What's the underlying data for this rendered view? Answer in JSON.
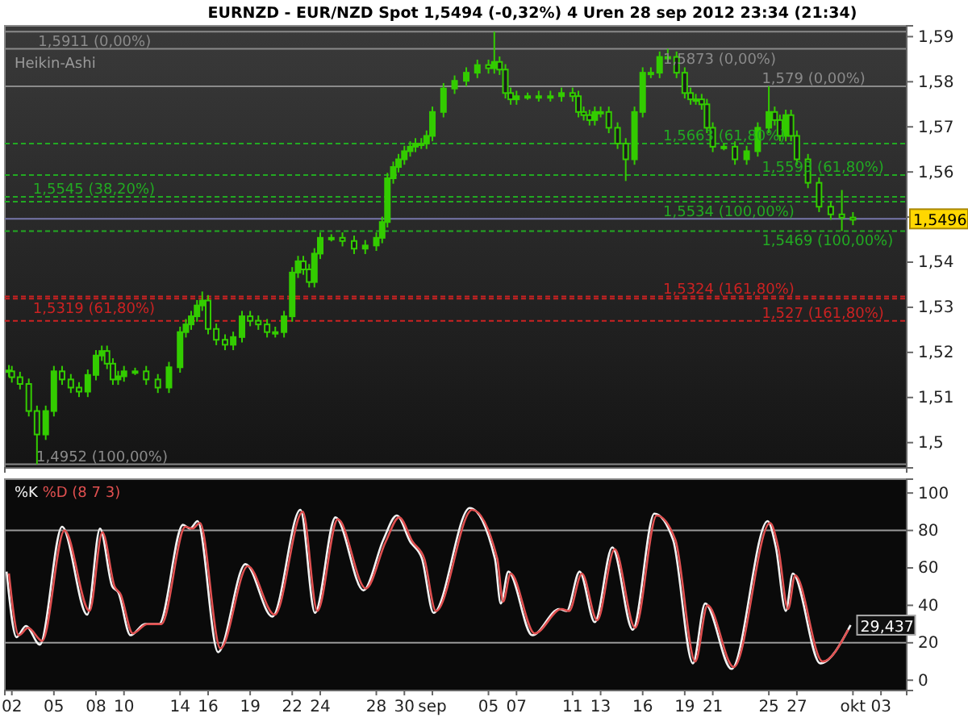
{
  "chart_data": [
    {
      "type": "candlestick",
      "title": "EURNZD - EUR/NZD Spot   1,5494 (-0,32%)   4 Uren  28 sep 2012 23:34 (21:34)",
      "color": "#33cc00",
      "annotations": [
        "Heikin-Ashi",
        {
          "text": "1,5911 (0,00%)",
          "x": "2012-08-03T21:00",
          "y": 1.5911
        },
        {
          "text": "1,5545 (38,20%)",
          "x": "2012-08-03T12:00",
          "y": 1.5545
        },
        {
          "text": "1,5319 (61,80%)",
          "x": "2012-08-03T12:00",
          "y": 1.5319
        },
        {
          "text": "1,4952 (100,00%)",
          "x": "2012-08-03T18:00",
          "y": 1.4952
        },
        {
          "text": "1,5873 (0,00%)",
          "x": "2012-09-17T11:00",
          "y": 1.5873
        },
        {
          "text": "1,579 (0,00%)",
          "x": "2012-09-24T12:00",
          "y": 1.579
        },
        {
          "text": "1,5663 (61,80%)",
          "x": "2012-09-17T11:00",
          "y": 1.5663
        },
        {
          "text": "1,5593 (61,80%)",
          "x": "2012-09-24T12:00",
          "y": 1.5593
        },
        {
          "text": "1,5534 (100,00%)",
          "x": "2012-09-17T11:00",
          "y": 1.5534
        },
        {
          "text": "1,5469 (100,00%)",
          "x": "2012-09-24T12:00",
          "y": 1.5469
        },
        {
          "text": "1,5324 (161,80%)",
          "x": "2012-09-17T11:00",
          "y": 1.5324
        },
        {
          "text": "1,527 (161,80%)",
          "x": "2012-09-24T12:00",
          "y": 1.527
        }
      ],
      "ref_lines": [
        {
          "axis": "y",
          "value": 1.5911,
          "color": "#8a8a8a",
          "line_style": "solid"
        },
        {
          "axis": "y",
          "value": 1.5545,
          "color": "#22aa22",
          "line_style": "dashed"
        },
        {
          "axis": "y",
          "value": 1.5319,
          "color": "#cc2222",
          "line_style": "dashed"
        },
        {
          "axis": "y",
          "value": 1.4952,
          "color": "#8a8a8a",
          "line_style": "solid"
        },
        {
          "axis": "y",
          "value": 1.5873,
          "color": "#8a8a8a",
          "line_style": "solid"
        },
        {
          "axis": "y",
          "value": 1.579,
          "color": "#8a8a8a",
          "line_style": "solid"
        },
        {
          "axis": "y",
          "value": 1.5663,
          "color": "#22aa22",
          "line_style": "dashed"
        },
        {
          "axis": "y",
          "value": 1.5593,
          "color": "#22aa22",
          "line_style": "dashed"
        },
        {
          "axis": "y",
          "value": 1.5534,
          "color": "#22aa22",
          "line_style": "dashed"
        },
        {
          "axis": "y",
          "value": 1.5469,
          "color": "#22aa22",
          "line_style": "dashed"
        },
        {
          "axis": "y",
          "value": 1.5324,
          "color": "#cc2222",
          "line_style": "dashed"
        },
        {
          "axis": "y",
          "value": 1.527,
          "color": "#cc2222",
          "line_style": "dashed"
        },
        {
          "axis": "y",
          "value": 1.5496,
          "color": "#7777aa",
          "line_style": "solid",
          "label": "1,5496"
        }
      ],
      "xlim": [
        "2012-08-01T12:00",
        "2012-10-04T20:00"
      ],
      "ylim": [
        1.4944,
        1.5924
      ],
      "yticks": [
        {
          "value": 1.5,
          "label": "1,5"
        },
        {
          "value": 1.51,
          "label": "1,51"
        },
        {
          "value": 1.52,
          "label": "1,52"
        },
        {
          "value": 1.53,
          "label": "1,53"
        },
        {
          "value": 1.54,
          "label": "1,54"
        },
        {
          "value": 1.55,
          "label": null
        },
        {
          "value": 1.56,
          "label": "1,56"
        },
        {
          "value": 1.57,
          "label": "1,57"
        },
        {
          "value": 1.58,
          "label": "1,58"
        },
        {
          "value": 1.59,
          "label": "1,59"
        }
      ],
      "tick_labels": "y",
      "x": [
        "2012-08-01T19:00",
        "2012-08-02T00:00",
        "2012-08-02T14:00",
        "2012-08-03T05:00",
        "2012-08-03T19:00",
        "2012-08-04T10:00",
        "2012-08-05T00:00",
        "2012-08-05T14:00",
        "2012-08-06T05:00",
        "2012-08-06T19:00",
        "2012-08-07T10:00",
        "2012-08-08T00:00",
        "2012-08-08T10:00",
        "2012-08-08T19:00",
        "2012-08-09T05:00",
        "2012-08-09T14:00",
        "2012-08-10T00:00",
        "2012-08-10T19:00",
        "2012-08-11T14:00",
        "2012-08-12T10:00",
        "2012-08-13T05:00",
        "2012-08-14T00:00",
        "2012-08-14T10:00",
        "2012-08-14T19:00",
        "2012-08-15T05:00",
        "2012-08-15T14:00",
        "2012-08-16T00:00",
        "2012-08-16T14:00",
        "2012-08-17T05:00",
        "2012-08-17T19:00",
        "2012-08-18T10:00",
        "2012-08-19T00:00",
        "2012-08-19T14:00",
        "2012-08-20T05:00",
        "2012-08-20T19:00",
        "2012-08-21T10:00",
        "2012-08-22T00:00",
        "2012-08-22T10:00",
        "2012-08-22T19:00",
        "2012-08-23T05:00",
        "2012-08-23T14:00",
        "2012-08-24T00:00",
        "2012-08-24T19:00",
        "2012-08-25T14:00",
        "2012-08-26T10:00",
        "2012-08-27T05:00",
        "2012-08-28T00:00",
        "2012-08-28T10:00",
        "2012-08-28T19:00",
        "2012-08-29T05:00",
        "2012-08-29T14:00",
        "2012-08-30T00:00",
        "2012-08-30T10:00",
        "2012-08-30T19:00",
        "2012-08-31T05:00",
        "2012-08-31T14:00",
        "2012-09-01T00:00",
        "2012-09-01T19:00",
        "2012-09-02T14:00",
        "2012-09-03T10:00",
        "2012-09-04T05:00",
        "2012-09-05T00:00",
        "2012-09-05T10:00",
        "2012-09-05T19:00",
        "2012-09-06T05:00",
        "2012-09-06T14:00",
        "2012-09-07T00:00",
        "2012-09-07T19:00",
        "2012-09-08T14:00",
        "2012-09-09T10:00",
        "2012-09-10T05:00",
        "2012-09-11T00:00",
        "2012-09-11T10:00",
        "2012-09-11T19:00",
        "2012-09-12T05:00",
        "2012-09-12T14:00",
        "2012-09-13T00:00",
        "2012-09-13T14:00",
        "2012-09-14T05:00",
        "2012-09-14T19:00",
        "2012-09-15T10:00",
        "2012-09-16T00:00",
        "2012-09-16T14:00",
        "2012-09-17T05:00",
        "2012-09-17T19:00",
        "2012-09-18T10:00",
        "2012-09-19T00:00",
        "2012-09-19T10:00",
        "2012-09-19T19:00",
        "2012-09-20T05:00",
        "2012-09-20T14:00",
        "2012-09-21T00:00",
        "2012-09-21T19:00",
        "2012-09-22T14:00",
        "2012-09-23T10:00",
        "2012-09-24T05:00",
        "2012-09-25T00:00",
        "2012-09-25T10:00",
        "2012-09-25T19:00",
        "2012-09-26T05:00",
        "2012-09-26T14:00",
        "2012-09-27T00:00",
        "2012-09-27T19:00",
        "2012-09-28T14:00",
        "2012-09-29T10:00",
        "2012-09-30T05:00",
        "2012-10-01T00:00"
      ],
      "ohlc": [
        [
          1.516,
          1.5172,
          1.5146,
          1.5158
        ],
        [
          1.5158,
          1.517,
          1.5133,
          1.5145
        ],
        [
          1.5145,
          1.5157,
          1.5118,
          1.513
        ],
        [
          1.513,
          1.5142,
          1.5058,
          1.507
        ],
        [
          1.507,
          1.5082,
          1.4952,
          1.5018
        ],
        [
          1.5018,
          1.5082,
          1.5006,
          1.507
        ],
        [
          1.507,
          1.517,
          1.5058,
          1.5158
        ],
        [
          1.5158,
          1.517,
          1.5128,
          1.514
        ],
        [
          1.514,
          1.5152,
          1.511,
          1.5122
        ],
        [
          1.5122,
          1.5134,
          1.5101,
          1.5113
        ],
        [
          1.5113,
          1.5162,
          1.5101,
          1.515
        ],
        [
          1.515,
          1.5205,
          1.5138,
          1.5193
        ],
        [
          1.5193,
          1.5215,
          1.5181,
          1.5203
        ],
        [
          1.5203,
          1.5215,
          1.5163,
          1.5175
        ],
        [
          1.5175,
          1.5187,
          1.5128,
          1.514
        ],
        [
          1.514,
          1.5159,
          1.5128,
          1.5147
        ],
        [
          1.5147,
          1.517,
          1.5135,
          1.5158
        ],
        [
          1.5158,
          1.5166,
          1.515,
          1.5158
        ],
        [
          1.5158,
          1.517,
          1.5128,
          1.514
        ],
        [
          1.514,
          1.5152,
          1.511,
          1.5122
        ],
        [
          1.5122,
          1.5179,
          1.511,
          1.5167
        ],
        [
          1.5167,
          1.5257,
          1.5155,
          1.5245
        ],
        [
          1.5245,
          1.5274,
          1.5233,
          1.5262
        ],
        [
          1.5262,
          1.5292,
          1.525,
          1.528
        ],
        [
          1.528,
          1.5316,
          1.5268,
          1.5304
        ],
        [
          1.5304,
          1.5335,
          1.5292,
          1.5315
        ],
        [
          1.5315,
          1.5327,
          1.524,
          1.5252
        ],
        [
          1.5252,
          1.5264,
          1.5216,
          1.5228
        ],
        [
          1.5228,
          1.524,
          1.5205,
          1.5217
        ],
        [
          1.5217,
          1.5246,
          1.5205,
          1.5234
        ],
        [
          1.5234,
          1.5292,
          1.5222,
          1.528
        ],
        [
          1.528,
          1.5292,
          1.5258,
          1.527
        ],
        [
          1.527,
          1.5282,
          1.525,
          1.5262
        ],
        [
          1.5262,
          1.5274,
          1.5233,
          1.5245
        ],
        [
          1.5245,
          1.5257,
          1.5233,
          1.5245
        ],
        [
          1.5245,
          1.5292,
          1.5233,
          1.528
        ],
        [
          1.528,
          1.5389,
          1.5268,
          1.5377
        ],
        [
          1.5377,
          1.5414,
          1.5365,
          1.5402
        ],
        [
          1.5402,
          1.5414,
          1.5372,
          1.5384
        ],
        [
          1.5384,
          1.5396,
          1.5344,
          1.5356
        ],
        [
          1.5356,
          1.5431,
          1.5344,
          1.5419
        ],
        [
          1.5419,
          1.5466,
          1.5407,
          1.5454
        ],
        [
          1.5454,
          1.5462,
          1.5446,
          1.5454
        ],
        [
          1.5454,
          1.5466,
          1.5435,
          1.5447
        ],
        [
          1.5447,
          1.5459,
          1.5418,
          1.543
        ],
        [
          1.543,
          1.5449,
          1.5418,
          1.5437
        ],
        [
          1.5437,
          1.5466,
          1.5425,
          1.5454
        ],
        [
          1.5454,
          1.5501,
          1.5442,
          1.5489
        ],
        [
          1.5489,
          1.5598,
          1.5477,
          1.5586
        ],
        [
          1.5586,
          1.5623,
          1.5574,
          1.5611
        ],
        [
          1.5611,
          1.564,
          1.5599,
          1.5628
        ],
        [
          1.5628,
          1.5658,
          1.5616,
          1.5646
        ],
        [
          1.5646,
          1.5668,
          1.5634,
          1.5656
        ],
        [
          1.5656,
          1.5675,
          1.5644,
          1.5663
        ],
        [
          1.5663,
          1.5675,
          1.5651,
          1.5663
        ],
        [
          1.5663,
          1.5692,
          1.5651,
          1.568
        ],
        [
          1.568,
          1.5745,
          1.5668,
          1.5733
        ],
        [
          1.5733,
          1.5797,
          1.5721,
          1.5785
        ],
        [
          1.5785,
          1.5814,
          1.5773,
          1.5802
        ],
        [
          1.5802,
          1.5832,
          1.579,
          1.582
        ],
        [
          1.582,
          1.5849,
          1.5808,
          1.5837
        ],
        [
          1.5837,
          1.5849,
          1.5818,
          1.583
        ],
        [
          1.583,
          1.5911,
          1.5818,
          1.5844
        ],
        [
          1.5844,
          1.5856,
          1.5815,
          1.5827
        ],
        [
          1.5827,
          1.5839,
          1.5763,
          1.5775
        ],
        [
          1.5775,
          1.5787,
          1.5749,
          1.5761
        ],
        [
          1.5761,
          1.578,
          1.5749,
          1.5768
        ],
        [
          1.5768,
          1.5776,
          1.576,
          1.5768
        ],
        [
          1.5768,
          1.578,
          1.5756,
          1.5768
        ],
        [
          1.5768,
          1.578,
          1.5756,
          1.5768
        ],
        [
          1.5768,
          1.5787,
          1.5756,
          1.5775
        ],
        [
          1.5775,
          1.5787,
          1.5756,
          1.5768
        ],
        [
          1.5768,
          1.578,
          1.5721,
          1.5733
        ],
        [
          1.5733,
          1.5745,
          1.5714,
          1.5726
        ],
        [
          1.5726,
          1.5738,
          1.5703,
          1.5715
        ],
        [
          1.5715,
          1.5745,
          1.5703,
          1.5733
        ],
        [
          1.5733,
          1.5745,
          1.5721,
          1.5733
        ],
        [
          1.5733,
          1.5745,
          1.5686,
          1.5698
        ],
        [
          1.5698,
          1.571,
          1.5651,
          1.5663
        ],
        [
          1.5663,
          1.5675,
          1.558,
          1.5628
        ],
        [
          1.5628,
          1.5745,
          1.5616,
          1.5733
        ],
        [
          1.5733,
          1.5832,
          1.5721,
          1.582
        ],
        [
          1.582,
          1.5832,
          1.5808,
          1.582
        ],
        [
          1.582,
          1.5867,
          1.5808,
          1.5855
        ],
        [
          1.5855,
          1.5873,
          1.5843,
          1.5855
        ],
        [
          1.5855,
          1.5867,
          1.5808,
          1.582
        ],
        [
          1.582,
          1.5832,
          1.5763,
          1.5775
        ],
        [
          1.5775,
          1.5787,
          1.5749,
          1.5761
        ],
        [
          1.5761,
          1.5773,
          1.5749,
          1.5761
        ],
        [
          1.5761,
          1.5773,
          1.5738,
          1.575
        ],
        [
          1.575,
          1.5762,
          1.5686,
          1.5698
        ],
        [
          1.5698,
          1.571,
          1.5644,
          1.5656
        ],
        [
          1.5656,
          1.5664,
          1.5648,
          1.5656
        ],
        [
          1.5656,
          1.5668,
          1.5616,
          1.5628
        ],
        [
          1.5628,
          1.5658,
          1.5616,
          1.5646
        ],
        [
          1.5646,
          1.571,
          1.5634,
          1.5698
        ],
        [
          1.5698,
          1.579,
          1.5686,
          1.5733
        ],
        [
          1.5733,
          1.5745,
          1.5703,
          1.5715
        ],
        [
          1.5715,
          1.5727,
          1.5668,
          1.568
        ],
        [
          1.568,
          1.5738,
          1.5668,
          1.5726
        ],
        [
          1.5726,
          1.5738,
          1.5668,
          1.568
        ],
        [
          1.568,
          1.5692,
          1.5616,
          1.5628
        ],
        [
          1.5628,
          1.564,
          1.5564,
          1.5576
        ],
        [
          1.5576,
          1.5588,
          1.5511,
          1.5523
        ],
        [
          1.5523,
          1.5535,
          1.5494,
          1.5506
        ],
        [
          1.5506,
          1.556,
          1.5469,
          1.5499
        ],
        [
          1.5499,
          1.5511,
          1.5482,
          1.5494
        ]
      ]
    },
    {
      "type": "line",
      "legend": "top left",
      "line_style": "solid",
      "series": [
        {
          "name": "%K",
          "color": "#f2f2f2",
          "x": [
            "2012-08-01T15:00",
            "2012-08-02T08:00",
            "2012-08-03T00:00",
            "2012-08-04T00:00",
            "2012-08-05T14:00",
            "2012-08-07T09:00",
            "2012-08-08T07:00",
            "2012-08-09T04:00",
            "2012-08-09T14:00",
            "2012-08-10T11:00",
            "2012-08-11T12:00",
            "2012-08-12T12:00",
            "2012-08-14T05:00",
            "2012-08-14T17:00",
            "2012-08-15T06:00",
            "2012-08-16T17:00",
            "2012-08-18T16:00",
            "2012-08-20T14:00",
            "2012-08-22T14:00",
            "2012-08-23T15:00",
            "2012-08-25T02:00",
            "2012-08-27T02:00",
            "2012-08-28T12:00",
            "2012-08-29T11:00",
            "2012-08-30T10:00",
            "2012-08-31T06:00",
            "2012-09-01T02:00",
            "2012-09-03T16:00",
            "2012-09-05T11:00",
            "2012-09-05T21:00",
            "2012-09-06T10:00",
            "2012-09-08T03:00",
            "2012-09-10T01:00",
            "2012-09-10T14:00",
            "2012-09-11T12:00",
            "2012-09-12T14:00",
            "2012-09-13T20:00",
            "2012-09-15T07:00",
            "2012-09-16T20:00",
            "2012-09-18T04:00",
            "2012-09-19T14:00",
            "2012-09-20T11:00",
            "2012-09-22T08:00",
            "2012-09-24T22:00",
            "2012-09-25T12:00",
            "2012-09-26T05:00",
            "2012-09-26T17:00",
            "2012-09-28T16:00",
            "2012-09-30T20:00"
          ],
          "values": [
            58,
            23,
            29,
            19,
            82,
            35,
            81,
            50,
            47,
            24,
            30,
            30,
            83,
            81,
            85,
            15,
            62,
            34,
            91,
            36,
            87,
            48,
            75,
            88,
            74,
            65,
            36,
            92,
            65,
            41,
            58,
            24,
            38,
            37,
            58,
            31,
            71,
            27,
            89,
            75,
            9,
            41,
            6,
            85,
            71,
            37,
            57,
            9,
            29.437
          ]
        },
        {
          "name": "%D (8 7 3)",
          "color": "#e05050",
          "x": [
            "2012-08-01T19:00",
            "2012-08-02T12:00",
            "2012-08-03T04:00",
            "2012-08-04T04:00",
            "2012-08-05T18:00",
            "2012-08-07T13:00",
            "2012-08-08T11:00",
            "2012-08-09T08:00",
            "2012-08-09T18:00",
            "2012-08-10T15:00",
            "2012-08-11T16:00",
            "2012-08-12T16:00",
            "2012-08-14T09:00",
            "2012-08-14T21:00",
            "2012-08-15T10:00",
            "2012-08-16T21:00",
            "2012-08-18T20:00",
            "2012-08-20T18:00",
            "2012-08-22T18:00",
            "2012-08-23T19:00",
            "2012-08-25T06:00",
            "2012-08-27T06:00",
            "2012-08-28T16:00",
            "2012-08-29T15:00",
            "2012-08-30T14:00",
            "2012-08-31T10:00",
            "2012-09-01T06:00",
            "2012-09-03T20:00",
            "2012-09-05T15:00",
            "2012-09-06T01:00",
            "2012-09-06T14:00",
            "2012-09-08T07:00",
            "2012-09-10T05:00",
            "2012-09-10T18:00",
            "2012-09-11T16:00",
            "2012-09-12T18:00",
            "2012-09-14T00:00",
            "2012-09-15T11:00",
            "2012-09-17T00:00",
            "2012-09-18T08:00",
            "2012-09-19T18:00",
            "2012-09-20T15:00",
            "2012-09-22T12:00",
            "2012-09-25T02:00",
            "2012-09-25T16:00",
            "2012-09-26T09:00",
            "2012-09-26T21:00",
            "2012-09-28T20:00",
            "2012-09-30T16:00"
          ],
          "values": [
            57,
            24,
            28,
            21,
            80,
            37,
            79,
            50,
            46,
            25,
            30,
            30,
            82,
            81,
            84,
            17,
            61,
            35,
            90,
            37,
            86,
            49,
            74,
            87,
            74,
            65,
            37,
            91,
            65,
            42,
            57,
            25,
            38,
            37,
            57,
            32,
            70,
            28,
            88,
            75,
            10,
            40,
            7,
            84,
            71,
            38,
            56,
            10,
            27
          ]
        }
      ],
      "annotations": [
        {
          "text": "29,437",
          "x": "2012-09-30T20:00",
          "y": 29.437
        }
      ],
      "ref_lines": [
        {
          "axis": "y",
          "value": 20,
          "color": "#9a9a9a",
          "line_style": "solid"
        },
        {
          "axis": "y",
          "value": 80,
          "color": "#9a9a9a",
          "line_style": "solid"
        }
      ],
      "xlim": [
        "2012-08-01T12:00",
        "2012-10-04T20:00"
      ],
      "xticks": [
        {
          "value": "2012-08-02",
          "label": "02"
        },
        {
          "value": "2012-08-05",
          "label": "05"
        },
        {
          "value": "2012-08-08",
          "label": "08"
        },
        {
          "value": "2012-08-10",
          "label": "10"
        },
        {
          "value": "2012-08-14",
          "label": "14"
        },
        {
          "value": "2012-08-16",
          "label": "16"
        },
        {
          "value": "2012-08-19",
          "label": "19"
        },
        {
          "value": "2012-08-22",
          "label": "22"
        },
        {
          "value": "2012-08-24",
          "label": "24"
        },
        {
          "value": "2012-08-28",
          "label": "28"
        },
        {
          "value": "2012-08-30",
          "label": "30"
        },
        {
          "value": "2012-09-01",
          "label": "sep"
        },
        {
          "value": "2012-09-05",
          "label": "05"
        },
        {
          "value": "2012-09-07",
          "label": "07"
        },
        {
          "value": "2012-09-11",
          "label": "11"
        },
        {
          "value": "2012-09-13",
          "label": "13"
        },
        {
          "value": "2012-09-16",
          "label": "16"
        },
        {
          "value": "2012-09-19",
          "label": "19"
        },
        {
          "value": "2012-09-21",
          "label": "21"
        },
        {
          "value": "2012-09-25",
          "label": "25"
        },
        {
          "value": "2012-09-27",
          "label": "27"
        },
        {
          "value": "2012-10-01",
          "label": "okt"
        },
        {
          "value": "2012-10-03",
          "label": "03"
        }
      ],
      "ylim": [
        -5.5,
        107.4
      ],
      "yticks": [
        0,
        20,
        40,
        60,
        80,
        100
      ]
    }
  ]
}
